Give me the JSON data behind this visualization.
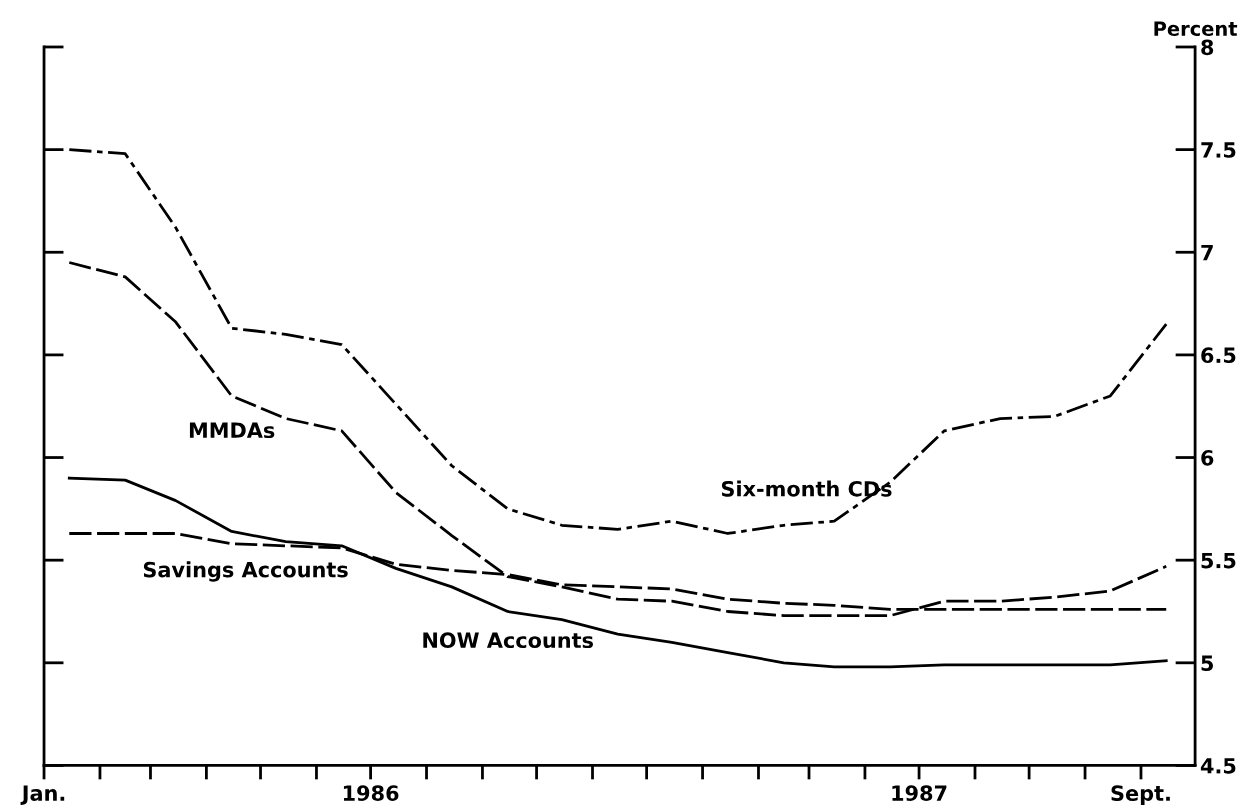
{
  "chart_data": {
    "type": "line",
    "ylabel": "Percent",
    "x": [
      "1986-01-15",
      "1986-02-15",
      "1986-03-15",
      "1986-04-15",
      "1986-05-15",
      "1986-06-15",
      "1986-07-15",
      "1986-08-15",
      "1986-09-15",
      "1986-10-15",
      "1986-11-15",
      "1986-12-15",
      "1987-01-15",
      "1987-02-15",
      "1987-03-15",
      "1987-04-15",
      "1987-05-15",
      "1987-06-15",
      "1987-07-15",
      "1987-08-15",
      "1987-09-15"
    ],
    "series": [
      {
        "name": "Six-month CDs",
        "color": "#000000",
        "line_style": "dashdot",
        "values": [
          7.5,
          7.48,
          7.12,
          6.63,
          6.6,
          6.55,
          6.26,
          5.96,
          5.75,
          5.67,
          5.65,
          5.69,
          5.63,
          5.67,
          5.69,
          5.88,
          6.13,
          6.19,
          6.2,
          6.3,
          6.65
        ]
      },
      {
        "name": "MMDAs",
        "color": "#000000",
        "line_style": "dashed",
        "values": [
          6.95,
          6.88,
          6.66,
          6.3,
          6.19,
          6.13,
          5.83,
          5.62,
          5.42,
          5.37,
          5.31,
          5.3,
          5.25,
          5.23,
          5.23,
          5.23,
          5.3,
          5.3,
          5.32,
          5.35,
          5.47
        ]
      },
      {
        "name": "Savings Accounts",
        "color": "#000000",
        "line_style": "dashed",
        "values": [
          5.63,
          5.63,
          5.63,
          5.58,
          5.57,
          5.56,
          5.48,
          5.45,
          5.43,
          5.38,
          5.37,
          5.36,
          5.31,
          5.29,
          5.28,
          5.26,
          5.26,
          5.26,
          5.26,
          5.26,
          5.26
        ]
      },
      {
        "name": "NOW Accounts",
        "color": "#000000",
        "line_style": "solid",
        "values": [
          5.9,
          5.89,
          5.79,
          5.64,
          5.59,
          5.57,
          5.46,
          5.37,
          5.25,
          5.21,
          5.14,
          5.1,
          5.05,
          5.0,
          4.98,
          4.98,
          4.99,
          4.99,
          4.99,
          4.99,
          5.01
        ]
      }
    ],
    "xlim": [
      "1986-01-01",
      "1987-10-01"
    ],
    "xticks": [
      {
        "value": "1986-01-01",
        "label": "Jan."
      },
      {
        "value": "1986-02-01",
        "label": null
      },
      {
        "value": "1986-03-01",
        "label": null
      },
      {
        "value": "1986-04-01",
        "label": null
      },
      {
        "value": "1986-05-01",
        "label": null
      },
      {
        "value": "1986-06-01",
        "label": null
      },
      {
        "value": "1986-07-01",
        "label": "1986"
      },
      {
        "value": "1986-08-01",
        "label": null
      },
      {
        "value": "1986-09-01",
        "label": null
      },
      {
        "value": "1986-10-01",
        "label": null
      },
      {
        "value": "1986-11-01",
        "label": null
      },
      {
        "value": "1986-12-01",
        "label": null
      },
      {
        "value": "1987-01-01",
        "label": null
      },
      {
        "value": "1987-02-01",
        "label": null
      },
      {
        "value": "1987-03-01",
        "label": null
      },
      {
        "value": "1987-04-01",
        "label": null
      },
      {
        "value": "1987-05-01",
        "label": "1987"
      },
      {
        "value": "1987-06-01",
        "label": null
      },
      {
        "value": "1987-07-01",
        "label": null
      },
      {
        "value": "1987-08-01",
        "label": null
      },
      {
        "value": "1987-09-01",
        "label": "Sept."
      }
    ],
    "ylim": [
      4.5,
      8
    ],
    "yticks": [
      4.5,
      5,
      5.5,
      6,
      6.5,
      7,
      7.5,
      8
    ],
    "grid": false,
    "legend": false,
    "marker": "none"
  }
}
